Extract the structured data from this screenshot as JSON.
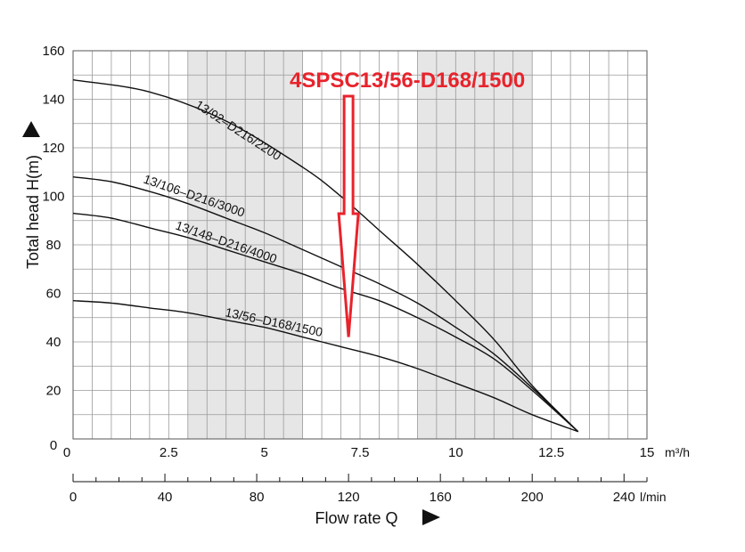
{
  "chart_data": {
    "type": "line",
    "title": "4SPSC13/56-D168/1500",
    "xlabel": "Flow rate Q",
    "ylabel": "Total head H(m)",
    "x_unit": "m³/h",
    "x2_unit": "l/min",
    "xlim": [
      0,
      15
    ],
    "ylim": [
      0,
      160
    ],
    "x_ticks": [
      "2.5",
      "5",
      "7.5",
      "10",
      "12.5",
      "15"
    ],
    "x2_ticks": [
      "0",
      "40",
      "80",
      "120",
      "160",
      "200",
      "240"
    ],
    "y_ticks": [
      "0",
      "20",
      "40",
      "60",
      "80",
      "100",
      "120",
      "140",
      "160"
    ],
    "grid": true,
    "shaded_bands": [
      [
        3,
        6
      ],
      [
        9,
        12
      ]
    ],
    "series": [
      {
        "name": "13/92–D216/2200",
        "points": [
          [
            0,
            148
          ],
          [
            2,
            143
          ],
          [
            4,
            131
          ],
          [
            6,
            112
          ],
          [
            7,
            100
          ],
          [
            8,
            86
          ],
          [
            9,
            72
          ],
          [
            10,
            57
          ],
          [
            11,
            41
          ],
          [
            12,
            22
          ],
          [
            13.2,
            3
          ]
        ]
      },
      {
        "name": "13/106–D216/3000",
        "points": [
          [
            0,
            108
          ],
          [
            1,
            106
          ],
          [
            2,
            102
          ],
          [
            3,
            97
          ],
          [
            4,
            91
          ],
          [
            5,
            85
          ],
          [
            6,
            78
          ],
          [
            7,
            71
          ],
          [
            8,
            64
          ],
          [
            9,
            56
          ],
          [
            10,
            46
          ],
          [
            11,
            35
          ],
          [
            12,
            21
          ],
          [
            13.2,
            3
          ]
        ]
      },
      {
        "name": "13/148–D216/4000",
        "points": [
          [
            0,
            93
          ],
          [
            1,
            91
          ],
          [
            2,
            87
          ],
          [
            3,
            83
          ],
          [
            4,
            78
          ],
          [
            5,
            73
          ],
          [
            6,
            68
          ],
          [
            7,
            62
          ],
          [
            8,
            57
          ],
          [
            9,
            50
          ],
          [
            10,
            42
          ],
          [
            11,
            33
          ],
          [
            12,
            20
          ],
          [
            13.2,
            3
          ]
        ]
      },
      {
        "name": "13/56–D168/1500",
        "points": [
          [
            0,
            57
          ],
          [
            1,
            56
          ],
          [
            2,
            54
          ],
          [
            3,
            52
          ],
          [
            4,
            49
          ],
          [
            5,
            46
          ],
          [
            6,
            42
          ],
          [
            7,
            38
          ],
          [
            8,
            34
          ],
          [
            9,
            29
          ],
          [
            10,
            23
          ],
          [
            11,
            17
          ],
          [
            12,
            10
          ],
          [
            13.2,
            3
          ]
        ]
      }
    ],
    "highlight_color": "#e8232c",
    "highlight_arrow_x": 7.2,
    "highlight_arrow_y_end": 42
  }
}
